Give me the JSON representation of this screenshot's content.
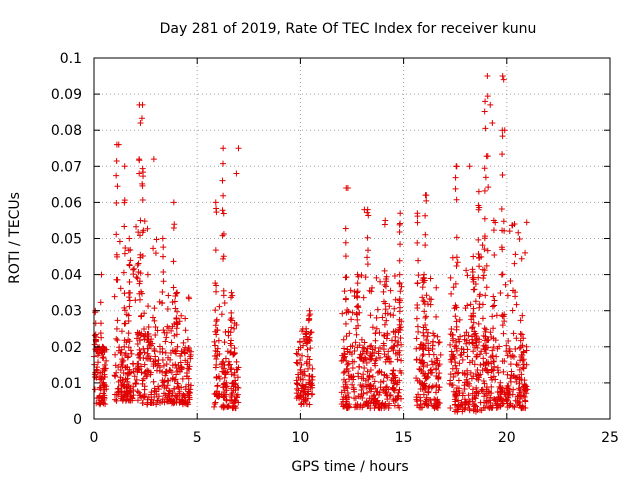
{
  "chart_data": {
    "type": "scatter",
    "title": "Day 281 of 2019, Rate Of TEC Index for receiver kunu",
    "xlabel": "GPS time / hours",
    "ylabel": "ROTI / TECUs",
    "xlim": [
      0,
      25
    ],
    "ylim": [
      0,
      0.1
    ],
    "xticks": [
      "0",
      "5",
      "10",
      "15",
      "20",
      "25"
    ],
    "yticks": [
      "0",
      "0.01",
      "0.02",
      "0.03",
      "0.04",
      "0.05",
      "0.06",
      "0.07",
      "0.08",
      "0.09",
      "0.1"
    ],
    "grid": true,
    "marker": "+",
    "color": "#e00000",
    "clusters": [
      {
        "x": [
          0.0,
          0.6
        ],
        "typical": [
          0.004,
          0.018
        ],
        "peaks": [
          0.02,
          0.03,
          0.04
        ]
      },
      {
        "x": [
          1.0,
          2.0
        ],
        "typical": [
          0.005,
          0.022
        ],
        "peaks": [
          0.05,
          0.07,
          0.076
        ]
      },
      {
        "x": [
          2.0,
          3.2
        ],
        "typical": [
          0.004,
          0.025
        ],
        "peaks": [
          0.055,
          0.072,
          0.087
        ]
      },
      {
        "x": [
          3.3,
          4.7
        ],
        "typical": [
          0.004,
          0.02
        ],
        "peaks": [
          0.035,
          0.05,
          0.06
        ]
      },
      {
        "x": [
          5.8,
          7.0
        ],
        "typical": [
          0.003,
          0.02
        ],
        "peaks": [
          0.035,
          0.06,
          0.075
        ]
      },
      {
        "x": [
          9.8,
          10.6
        ],
        "typical": [
          0.004,
          0.02
        ],
        "peaks": [
          0.025,
          0.03
        ]
      },
      {
        "x": [
          12.0,
          13.5
        ],
        "typical": [
          0.003,
          0.022
        ],
        "peaks": [
          0.04,
          0.058,
          0.064
        ]
      },
      {
        "x": [
          13.5,
          14.9
        ],
        "typical": [
          0.003,
          0.025
        ],
        "peaks": [
          0.04,
          0.055,
          0.057
        ]
      },
      {
        "x": [
          15.6,
          16.8
        ],
        "typical": [
          0.003,
          0.022
        ],
        "peaks": [
          0.04,
          0.057,
          0.062
        ]
      },
      {
        "x": [
          17.2,
          18.8
        ],
        "typical": [
          0.002,
          0.025
        ],
        "peaks": [
          0.045,
          0.063,
          0.07
        ]
      },
      {
        "x": [
          18.8,
          21.0
        ],
        "typical": [
          0.003,
          0.025
        ],
        "peaks": [
          0.055,
          0.08,
          0.088,
          0.095
        ]
      }
    ],
    "notable_points": [
      {
        "x": 1.2,
        "y": 0.076
      },
      {
        "x": 2.2,
        "y": 0.087
      },
      {
        "x": 2.25,
        "y": 0.082
      },
      {
        "x": 2.9,
        "y": 0.072
      },
      {
        "x": 7.0,
        "y": 0.075
      },
      {
        "x": 6.9,
        "y": 0.068
      },
      {
        "x": 12.3,
        "y": 0.064
      },
      {
        "x": 13.1,
        "y": 0.058
      },
      {
        "x": 16.1,
        "y": 0.062
      },
      {
        "x": 18.2,
        "y": 0.07
      },
      {
        "x": 19.2,
        "y": 0.087
      },
      {
        "x": 19.3,
        "y": 0.082
      },
      {
        "x": 19.8,
        "y": 0.095
      },
      {
        "x": 19.85,
        "y": 0.094
      },
      {
        "x": 19.9,
        "y": 0.08
      }
    ]
  }
}
